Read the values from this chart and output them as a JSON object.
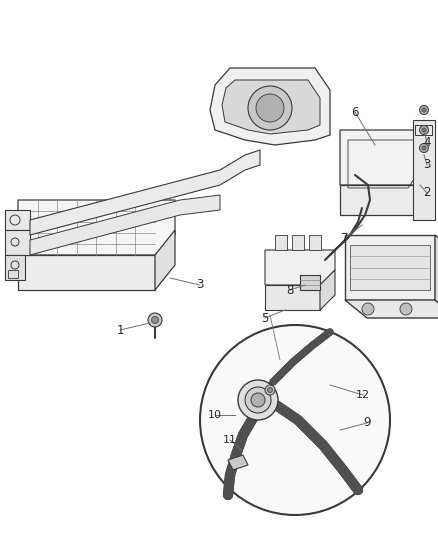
{
  "background_color": "#ffffff",
  "figsize": [
    4.38,
    5.33
  ],
  "dpi": 100,
  "line_color": "#3a3a3a",
  "light_line": "#888888",
  "fill_light": "#f0f0f0",
  "fill_mid": "#d8d8d8",
  "fill_dark": "#b0b0b0",
  "label_color": "#2a2a2a",
  "leader_color": "#707070"
}
